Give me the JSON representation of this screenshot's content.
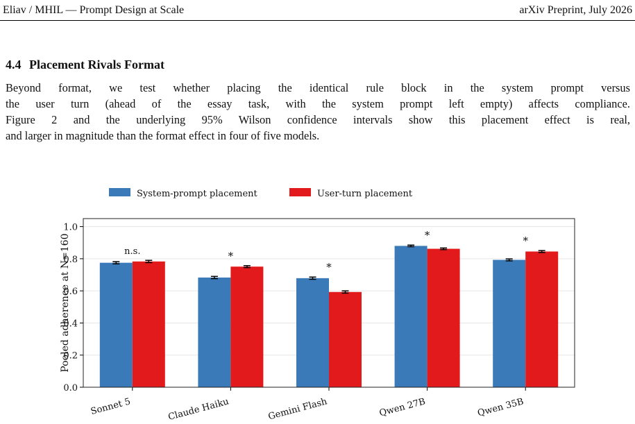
{
  "header": {
    "left": "Eliav / MHIL — Prompt Design at Scale",
    "right": "arXiv Preprint, July 2026"
  },
  "section": {
    "number": "4.4",
    "title": "Placement Rivals Format"
  },
  "paragraph": {
    "lines": [
      "Beyond format, we test whether placing the identical rule block in the system prompt versus",
      "the user turn (ahead of the essay task, with the system prompt left empty) affects compliance.",
      "Figure 2 and the underlying 95% Wilson confidence intervals show this placement effect is real,",
      "and larger in magnitude than the format effect in four of five models."
    ]
  },
  "chart_data": {
    "type": "bar",
    "ylabel": "Pooled adherence at N=160",
    "xlabel": "",
    "ylim": [
      0,
      1.05
    ],
    "yticks": [
      "0.0",
      "0.2",
      "0.4",
      "0.6",
      "0.8",
      "1.0"
    ],
    "legend_position": "top-center",
    "grid": "horizontal",
    "categories": [
      "Sonnet 5",
      "Claude Haiku",
      "Gemini Flash",
      "Qwen 27B",
      "Qwen 35B"
    ],
    "series": [
      {
        "name": "System-prompt placement",
        "color": "#3a7ab8",
        "values": [
          0.775,
          0.683,
          0.679,
          0.88,
          0.793
        ],
        "ci": [
          0.007,
          0.007,
          0.007,
          0.005,
          0.006
        ]
      },
      {
        "name": "User-turn placement",
        "color": "#e31a1c",
        "values": [
          0.783,
          0.751,
          0.593,
          0.862,
          0.845
        ],
        "ci": [
          0.007,
          0.006,
          0.007,
          0.005,
          0.006
        ]
      }
    ],
    "annotations": [
      "n.s.",
      "*",
      "*",
      "*",
      "*"
    ]
  }
}
